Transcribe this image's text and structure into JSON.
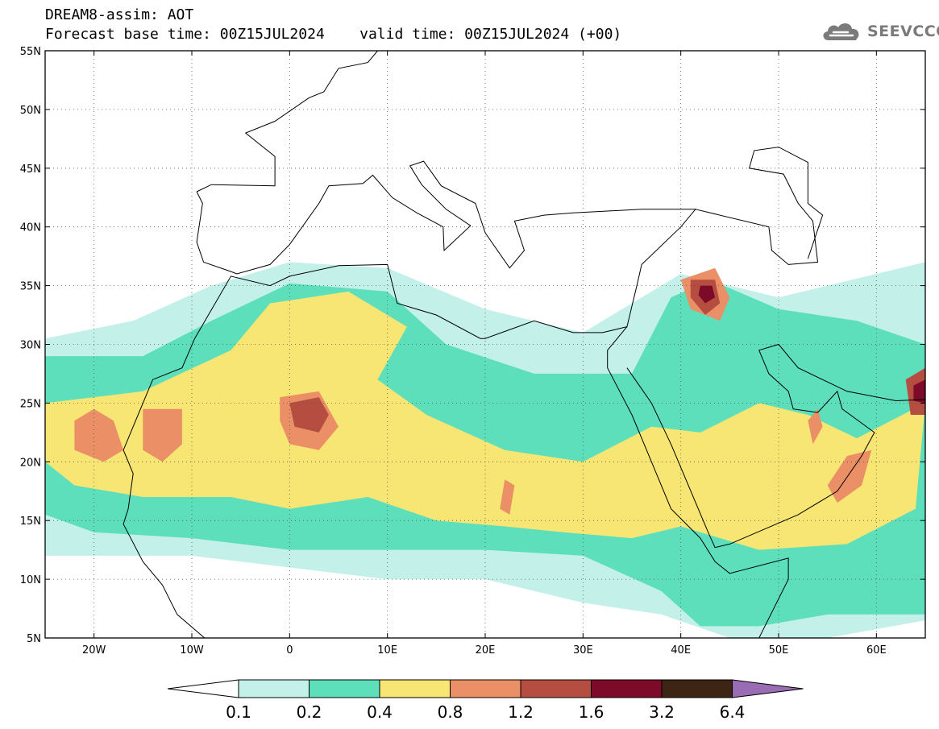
{
  "header": {
    "title_line1": "DREAM8-assim: AOT",
    "title_line2": "Forecast base time: 00Z15JUL2024    valid time: 00Z15JUL2024 (+00)",
    "brand": "SEEVCCC"
  },
  "map": {
    "projection": "lat-lon",
    "lon_range": [
      -25,
      65
    ],
    "lat_range": [
      5,
      55
    ],
    "lon_ticks": [
      {
        "value": -20,
        "label": "20W"
      },
      {
        "value": -10,
        "label": "10W"
      },
      {
        "value": 0,
        "label": "0"
      },
      {
        "value": 10,
        "label": "10E"
      },
      {
        "value": 20,
        "label": "20E"
      },
      {
        "value": 30,
        "label": "30E"
      },
      {
        "value": 40,
        "label": "40E"
      },
      {
        "value": 50,
        "label": "50E"
      },
      {
        "value": 60,
        "label": "60E"
      }
    ],
    "lat_ticks": [
      {
        "value": 55,
        "label": "55N"
      },
      {
        "value": 50,
        "label": "50N"
      },
      {
        "value": 45,
        "label": "45N"
      },
      {
        "value": 40,
        "label": "40N"
      },
      {
        "value": 35,
        "label": "35N"
      },
      {
        "value": 30,
        "label": "30N"
      },
      {
        "value": 25,
        "label": "25N"
      },
      {
        "value": 20,
        "label": "20N"
      },
      {
        "value": 15,
        "label": "15N"
      },
      {
        "value": 10,
        "label": "10N"
      }
    ],
    "lat_ticks_bottom": {
      "value": 5,
      "label": "5N"
    },
    "grid": "dotted",
    "field": "AOT",
    "features": [
      {
        "level": 0.1,
        "lonlat": [
          [
            -25,
            30.5
          ],
          [
            -16,
            32
          ],
          [
            -8,
            35
          ],
          [
            0,
            37
          ],
          [
            10,
            36.5
          ],
          [
            20,
            33
          ],
          [
            30,
            31
          ],
          [
            36,
            34
          ],
          [
            40,
            36
          ],
          [
            50,
            34
          ],
          [
            65,
            37
          ],
          [
            65,
            6.5
          ],
          [
            55,
            5
          ],
          [
            45,
            5
          ],
          [
            38,
            7
          ],
          [
            30,
            8
          ],
          [
            20,
            10
          ],
          [
            10,
            10
          ],
          [
            0,
            11
          ],
          [
            -10,
            12
          ],
          [
            -20,
            12
          ],
          [
            -25,
            12
          ]
        ]
      },
      {
        "level": 0.2,
        "lonlat": [
          [
            -25,
            29
          ],
          [
            -15,
            29
          ],
          [
            -8,
            32
          ],
          [
            0,
            35.2
          ],
          [
            10,
            34.5
          ],
          [
            16,
            30
          ],
          [
            25,
            27.5
          ],
          [
            35,
            27.5
          ],
          [
            39,
            34
          ],
          [
            43,
            35.5
          ],
          [
            50,
            33
          ],
          [
            58,
            32
          ],
          [
            65,
            30
          ],
          [
            65,
            7
          ],
          [
            55,
            7
          ],
          [
            48,
            6
          ],
          [
            42,
            6
          ],
          [
            38,
            9
          ],
          [
            30,
            12
          ],
          [
            20,
            12.5
          ],
          [
            10,
            12.5
          ],
          [
            0,
            12.5
          ],
          [
            -10,
            13.5
          ],
          [
            -20,
            14
          ],
          [
            -25,
            15.5
          ]
        ]
      },
      {
        "level": 0.4,
        "lonlat": [
          [
            -25,
            25
          ],
          [
            -15,
            26
          ],
          [
            -6,
            29.5
          ],
          [
            -2,
            33.5
          ],
          [
            6,
            34.5
          ],
          [
            12,
            31.5
          ],
          [
            9,
            27
          ],
          [
            14,
            24
          ],
          [
            22,
            21
          ],
          [
            30,
            20
          ],
          [
            37,
            23
          ],
          [
            42,
            22.5
          ],
          [
            48,
            25
          ],
          [
            53,
            24
          ],
          [
            58,
            22
          ],
          [
            65,
            25
          ],
          [
            64,
            16
          ],
          [
            57,
            13
          ],
          [
            48,
            12.5
          ],
          [
            40,
            14.5
          ],
          [
            35,
            13.5
          ],
          [
            28,
            14
          ],
          [
            22,
            14.5
          ],
          [
            15,
            15
          ],
          [
            8,
            17
          ],
          [
            0,
            16
          ],
          [
            -6,
            17
          ],
          [
            -15,
            17
          ],
          [
            -22,
            18
          ],
          [
            -25,
            20
          ]
        ]
      },
      {
        "level": 0.8,
        "lonlat": [
          [
            -22,
            23.5
          ],
          [
            -20,
            24.5
          ],
          [
            -18,
            23.5
          ],
          [
            -17,
            21
          ],
          [
            -19,
            20
          ],
          [
            -22,
            21
          ]
        ]
      },
      {
        "level": 0.8,
        "lonlat": [
          [
            -15,
            24.5
          ],
          [
            -11,
            24.5
          ],
          [
            -11,
            21.5
          ],
          [
            -13,
            20
          ],
          [
            -15,
            21
          ]
        ]
      },
      {
        "level": 0.8,
        "lonlat": [
          [
            -1,
            25.5
          ],
          [
            3,
            26
          ],
          [
            5,
            23
          ],
          [
            3,
            21
          ],
          [
            0,
            21.5
          ],
          [
            -1,
            23.5
          ]
        ]
      },
      {
        "level": 0.8,
        "lonlat": [
          [
            40,
            35.5
          ],
          [
            43.5,
            36.5
          ],
          [
            45,
            34
          ],
          [
            44,
            32
          ],
          [
            41,
            33
          ]
        ]
      },
      {
        "level": 0.8,
        "lonlat": [
          [
            53,
            23.5
          ],
          [
            54,
            24.5
          ],
          [
            54.5,
            23
          ],
          [
            53.5,
            21.5
          ]
        ]
      },
      {
        "level": 0.8,
        "lonlat": [
          [
            57,
            20.5
          ],
          [
            59.5,
            21
          ],
          [
            58.5,
            18
          ],
          [
            56,
            16.5
          ],
          [
            55,
            18
          ]
        ]
      },
      {
        "level": 0.8,
        "lonlat": [
          [
            22,
            18.5
          ],
          [
            23,
            18
          ],
          [
            22.5,
            15.5
          ],
          [
            21.5,
            16
          ]
        ]
      },
      {
        "level": 1.2,
        "lonlat": [
          [
            41,
            35.5
          ],
          [
            43.5,
            35.5
          ],
          [
            44,
            33.5
          ],
          [
            42.5,
            32.5
          ],
          [
            41,
            34
          ]
        ]
      },
      {
        "level": 1.2,
        "lonlat": [
          [
            0,
            25
          ],
          [
            3,
            25.5
          ],
          [
            4,
            24
          ],
          [
            3,
            22.5
          ],
          [
            0.5,
            23
          ]
        ]
      },
      {
        "level": 1.2,
        "lonlat": [
          [
            63,
            27
          ],
          [
            65,
            28
          ],
          [
            65,
            24
          ],
          [
            63.5,
            24
          ]
        ]
      },
      {
        "level": 1.6,
        "lonlat": [
          [
            42,
            35
          ],
          [
            43.2,
            35
          ],
          [
            43.5,
            34
          ],
          [
            42.5,
            33.5
          ],
          [
            41.8,
            34.2
          ]
        ]
      },
      {
        "level": 1.6,
        "lonlat": [
          [
            63.8,
            26.5
          ],
          [
            65,
            27
          ],
          [
            65,
            25
          ],
          [
            63.8,
            25.2
          ]
        ]
      }
    ],
    "boundaries": [
      [
        [
          -9.5,
          43
        ],
        [
          -8,
          43.6
        ],
        [
          -1.5,
          43.5
        ],
        [
          -1.5,
          46
        ],
        [
          -4.5,
          48
        ],
        [
          -1.5,
          49
        ],
        [
          2,
          51
        ],
        [
          3.5,
          51.5
        ],
        [
          5,
          53.5
        ],
        [
          8,
          54
        ],
        [
          9,
          55
        ]
      ],
      [
        [
          -9.5,
          43
        ],
        [
          -8.9,
          42
        ],
        [
          -9.5,
          38.7
        ],
        [
          -8.8,
          37
        ],
        [
          -6,
          36.2
        ],
        [
          -5.4,
          36
        ],
        [
          -2,
          36.8
        ],
        [
          0,
          38.5
        ],
        [
          3,
          42
        ],
        [
          4,
          43.5
        ],
        [
          7.5,
          43.7
        ],
        [
          8.5,
          44.4
        ],
        [
          10.5,
          42.5
        ],
        [
          13,
          41.2
        ],
        [
          15.7,
          40
        ],
        [
          15.8,
          38
        ],
        [
          18.5,
          40.1
        ],
        [
          16,
          41.5
        ],
        [
          13.5,
          43.6
        ],
        [
          12.3,
          45.2
        ],
        [
          13.7,
          45.6
        ],
        [
          15.5,
          43.5
        ],
        [
          19,
          42
        ],
        [
          20,
          39.5
        ],
        [
          22.5,
          36.5
        ],
        [
          24,
          38
        ],
        [
          23,
          40.5
        ],
        [
          26,
          41
        ],
        [
          29,
          41.2
        ],
        [
          36,
          41.5
        ],
        [
          41.5,
          41.5
        ],
        [
          40,
          40
        ],
        [
          36,
          36.8
        ],
        [
          35.5,
          35
        ],
        [
          34.5,
          31.5
        ],
        [
          32,
          31
        ],
        [
          29,
          31
        ],
        [
          25,
          32
        ],
        [
          20,
          30.5
        ],
        [
          19.5,
          30.5
        ],
        [
          15,
          32.5
        ],
        [
          11,
          33.5
        ],
        [
          10,
          36.8
        ],
        [
          5,
          36.7
        ],
        [
          0,
          35.8
        ],
        [
          -2,
          35
        ],
        [
          -6,
          35.8
        ],
        [
          -9.7,
          30.5
        ],
        [
          -11,
          28
        ],
        [
          -14,
          27
        ],
        [
          -17,
          21
        ],
        [
          -16,
          19
        ],
        [
          -16.5,
          16
        ],
        [
          -17,
          14.7
        ],
        [
          -15,
          11.5
        ],
        [
          -13,
          9.5
        ],
        [
          -11.5,
          7
        ],
        [
          -8,
          4.5
        ]
      ],
      [
        [
          34.5,
          31.5
        ],
        [
          32.5,
          29.5
        ],
        [
          32.5,
          28
        ],
        [
          35,
          24
        ],
        [
          37,
          20
        ],
        [
          39,
          16
        ],
        [
          42,
          13.5
        ],
        [
          43.5,
          11.5
        ],
        [
          45,
          10.5
        ],
        [
          51,
          11.8
        ],
        [
          51,
          10
        ],
        [
          48,
          5
        ]
      ],
      [
        [
          34.5,
          28
        ],
        [
          37,
          25
        ],
        [
          39,
          21.5
        ],
        [
          42.8,
          14
        ],
        [
          43.5,
          12.7
        ],
        [
          45,
          13
        ],
        [
          52,
          15.5
        ],
        [
          56,
          17.5
        ],
        [
          58.5,
          20.5
        ],
        [
          59.8,
          22.5
        ],
        [
          56.5,
          24.5
        ],
        [
          56,
          26
        ],
        [
          54,
          24.2
        ],
        [
          51.5,
          24.5
        ],
        [
          51,
          26
        ],
        [
          49,
          27.5
        ],
        [
          48,
          29.5
        ],
        [
          50,
          30
        ],
        [
          52,
          28
        ],
        [
          57,
          26
        ],
        [
          62,
          25.2
        ],
        [
          65,
          25.3
        ]
      ],
      [
        [
          41.5,
          41.5
        ],
        [
          49,
          40
        ],
        [
          49.3,
          38
        ],
        [
          51,
          36.8
        ],
        [
          54,
          37
        ],
        [
          53.5,
          40.5
        ],
        [
          52,
          42
        ],
        [
          50.5,
          44.5
        ],
        [
          47,
          45
        ],
        [
          47.5,
          46.5
        ],
        [
          50,
          46.8
        ],
        [
          53,
          45.5
        ],
        [
          53,
          42
        ],
        [
          54.5,
          41
        ],
        [
          53,
          37.3
        ]
      ]
    ]
  },
  "colorbar": {
    "levels": [
      "0.1",
      "0.2",
      "0.4",
      "0.8",
      "1.2",
      "1.6",
      "3.2",
      "6.4"
    ],
    "colors": [
      "#ffffff",
      "#c4f0ea",
      "#5ddfbb",
      "#f7e673",
      "#eb8f66",
      "#b54e41",
      "#7d0a28",
      "#3d2414",
      "#9a6cb4"
    ],
    "extend": "both"
  },
  "colors": {
    "land_outline": "#000000",
    "grid": "#555555",
    "brand": "#7a7a7a"
  }
}
